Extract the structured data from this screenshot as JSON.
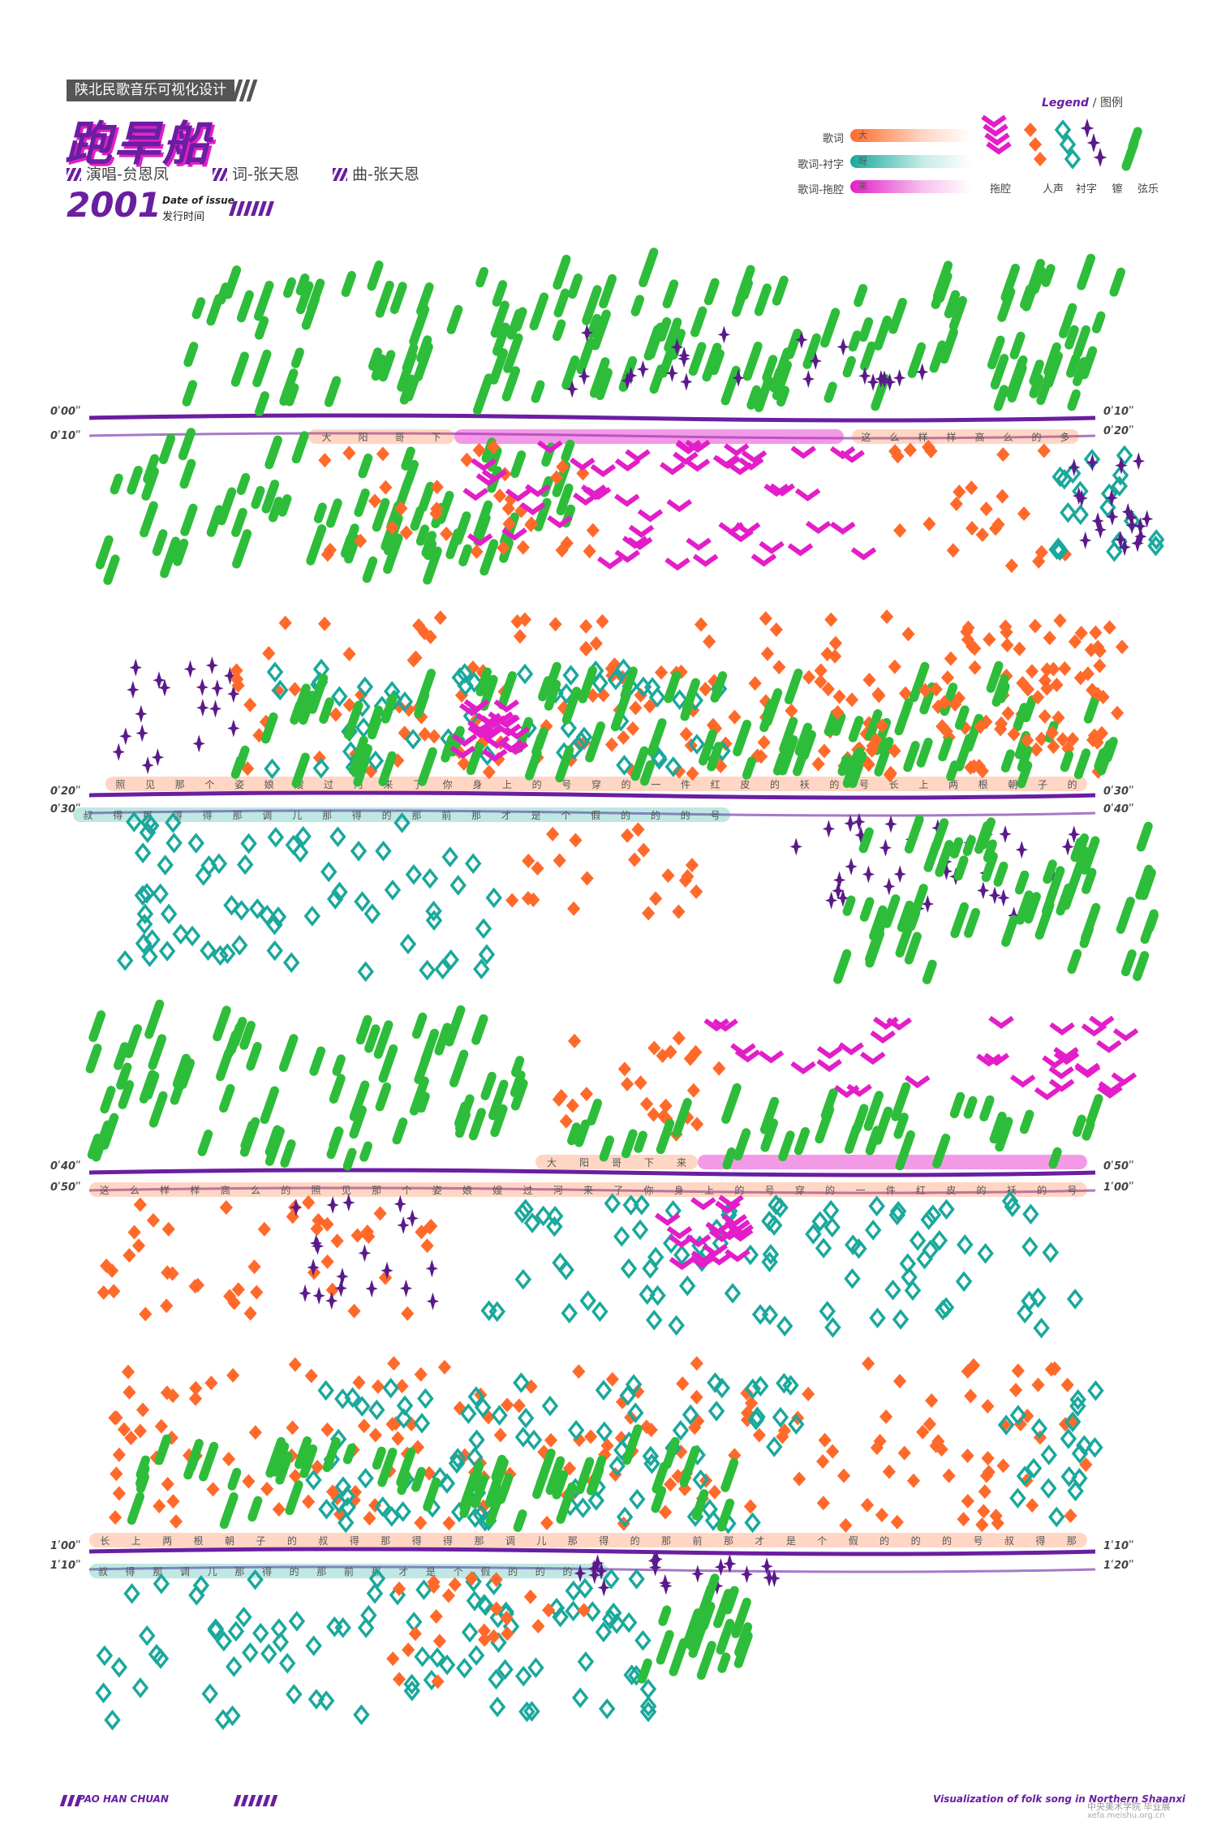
{
  "poster": {
    "kicker": "陕北民歌音乐可视化设计",
    "title": "跑旱船",
    "credits": {
      "singer": "演唱-贠恩凤",
      "lyrics": "词-张天恩",
      "music": "曲-张天恩"
    },
    "year": "2001",
    "issue_en": "Date of issue",
    "issue_cn": "发行时间"
  },
  "legend": {
    "title": "Legend",
    "title_cn": "/ 图例",
    "lyric_rows": [
      {
        "label": "歌词",
        "char": "大",
        "color": "#ff6a2b"
      },
      {
        "label": "歌词-衬字",
        "char": "呀",
        "color": "#1aa89c"
      },
      {
        "label": "歌词-拖腔",
        "char": "来",
        "color": "#e31ec8"
      }
    ],
    "marks": [
      {
        "name": "拖腔",
        "icon": "chevron-stack-icon",
        "color": "#e31ec8"
      },
      {
        "name": "人声",
        "icon": "orange-diamond-icon",
        "color": "#ff6a2b"
      },
      {
        "name": "衬字",
        "icon": "teal-chain-icon",
        "color": "#1aa89c"
      },
      {
        "name": "镲",
        "icon": "star-burst-icon",
        "color": "#5a1a8a"
      },
      {
        "name": "弦乐",
        "icon": "green-dash-icon",
        "color": "#2ebd3a"
      }
    ]
  },
  "rows": [
    {
      "time_left_top": "0ʹ00ʺ",
      "time_left_bottom": "0ʹ10ʺ",
      "time_right_top": "0ʹ10ʺ",
      "time_right_bottom": "0ʹ20ʺ",
      "lyrics_top": [
        "大",
        "阳",
        "哥",
        "下"
      ],
      "lyrics_top_right": [
        "这",
        "么",
        "样",
        "样",
        "高",
        "么",
        "的",
        "多"
      ],
      "lyrics_bottom": []
    },
    {
      "time_left_top": "0ʹ20ʺ",
      "time_left_bottom": "0ʹ30ʺ",
      "time_right_top": "0ʹ30ʺ",
      "time_right_bottom": "0ʹ40ʺ",
      "lyrics_top": [
        "照",
        "见",
        "那",
        "个",
        "姿",
        "娘",
        "嫂",
        "过",
        "河",
        "来",
        "了",
        "你",
        "身",
        "上",
        "的",
        "号",
        "穿",
        "的",
        "一",
        "件",
        "红",
        "皮",
        "的",
        "袄",
        "的",
        "号",
        "长",
        "上",
        "两",
        "根",
        "朝",
        "子",
        "的"
      ],
      "lyrics_bottom": [
        "叔",
        "得",
        "那",
        "得",
        "得",
        "那",
        "调",
        "儿",
        "那",
        "得",
        "的",
        "那",
        "前",
        "那",
        "才",
        "是",
        "个",
        "假",
        "的",
        "的",
        "的",
        "号"
      ]
    },
    {
      "time_left_top": "0ʹ40ʺ",
      "time_left_bottom": "0ʹ50ʺ",
      "time_right_top": "0ʹ50ʺ",
      "time_right_bottom": "1ʹ00ʺ",
      "lyrics_top": [
        "大",
        "阳",
        "哥",
        "下",
        "来"
      ],
      "lyrics_bottom": [
        "这",
        "么",
        "样",
        "样",
        "高",
        "么",
        "的",
        "照",
        "见",
        "那",
        "个",
        "姿",
        "娘",
        "嫂",
        "过",
        "河",
        "来",
        "了",
        "你",
        "身",
        "上",
        "的",
        "号",
        "穿",
        "的",
        "一",
        "件",
        "红",
        "皮",
        "的",
        "袄",
        "的",
        "号"
      ]
    },
    {
      "time_left_top": "1ʹ00ʺ",
      "time_left_bottom": "1ʹ10ʺ",
      "time_right_top": "1ʹ10ʺ",
      "time_right_bottom": "1ʹ20ʺ",
      "lyrics_top": [
        "长",
        "上",
        "两",
        "根",
        "朝",
        "子",
        "的",
        "叔",
        "得",
        "那",
        "得",
        "得",
        "那",
        "调",
        "儿",
        "那",
        "得",
        "的",
        "那",
        "前",
        "那",
        "才",
        "是",
        "个",
        "假",
        "的",
        "的",
        "的",
        "号",
        "叔",
        "得",
        "那"
      ],
      "lyrics_bottom": [
        "叔",
        "得",
        "那",
        "调",
        "儿",
        "那",
        "得",
        "的",
        "那",
        "前",
        "那",
        "才",
        "是",
        "个",
        "假",
        "的",
        "的",
        "的",
        "号"
      ]
    }
  ],
  "footer": {
    "left": "PAO HAN CHUAN",
    "right": "Visualization of folk song in Northern Shaanxi",
    "watermark": "中央美术学院 毕业展",
    "watermark_url": "xefa.meishu.org.cn"
  }
}
